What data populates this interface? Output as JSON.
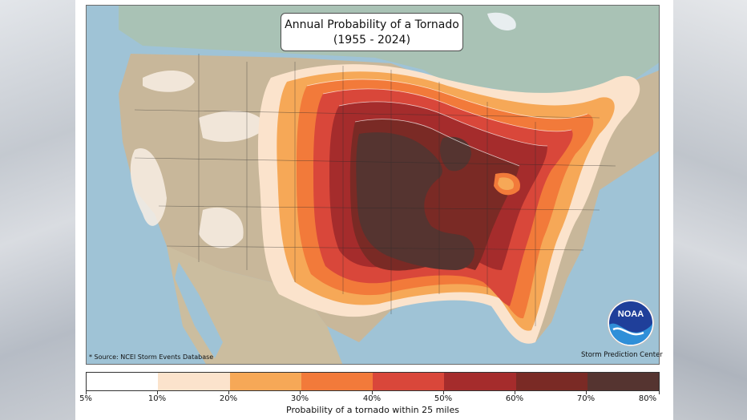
{
  "map": {
    "title_line1": "Annual Probability of a Tornado",
    "title_line2": "(1955 - 2024)",
    "source_note": "* Source: NCEI Storm Events Database",
    "credit": "Storm Prediction Center",
    "logo_text": "NOAA"
  },
  "legend": {
    "label": "Probability of a tornado within 25 miles",
    "ticks": [
      "5%",
      "10%",
      "20%",
      "30%",
      "40%",
      "50%",
      "60%",
      "70%",
      "80%"
    ],
    "colors": [
      "#ffffff",
      "#fbe3cc",
      "#f6a857",
      "#f27a3a",
      "#d9473a",
      "#a52c2c",
      "#7a2a25",
      "#553430"
    ]
  }
}
